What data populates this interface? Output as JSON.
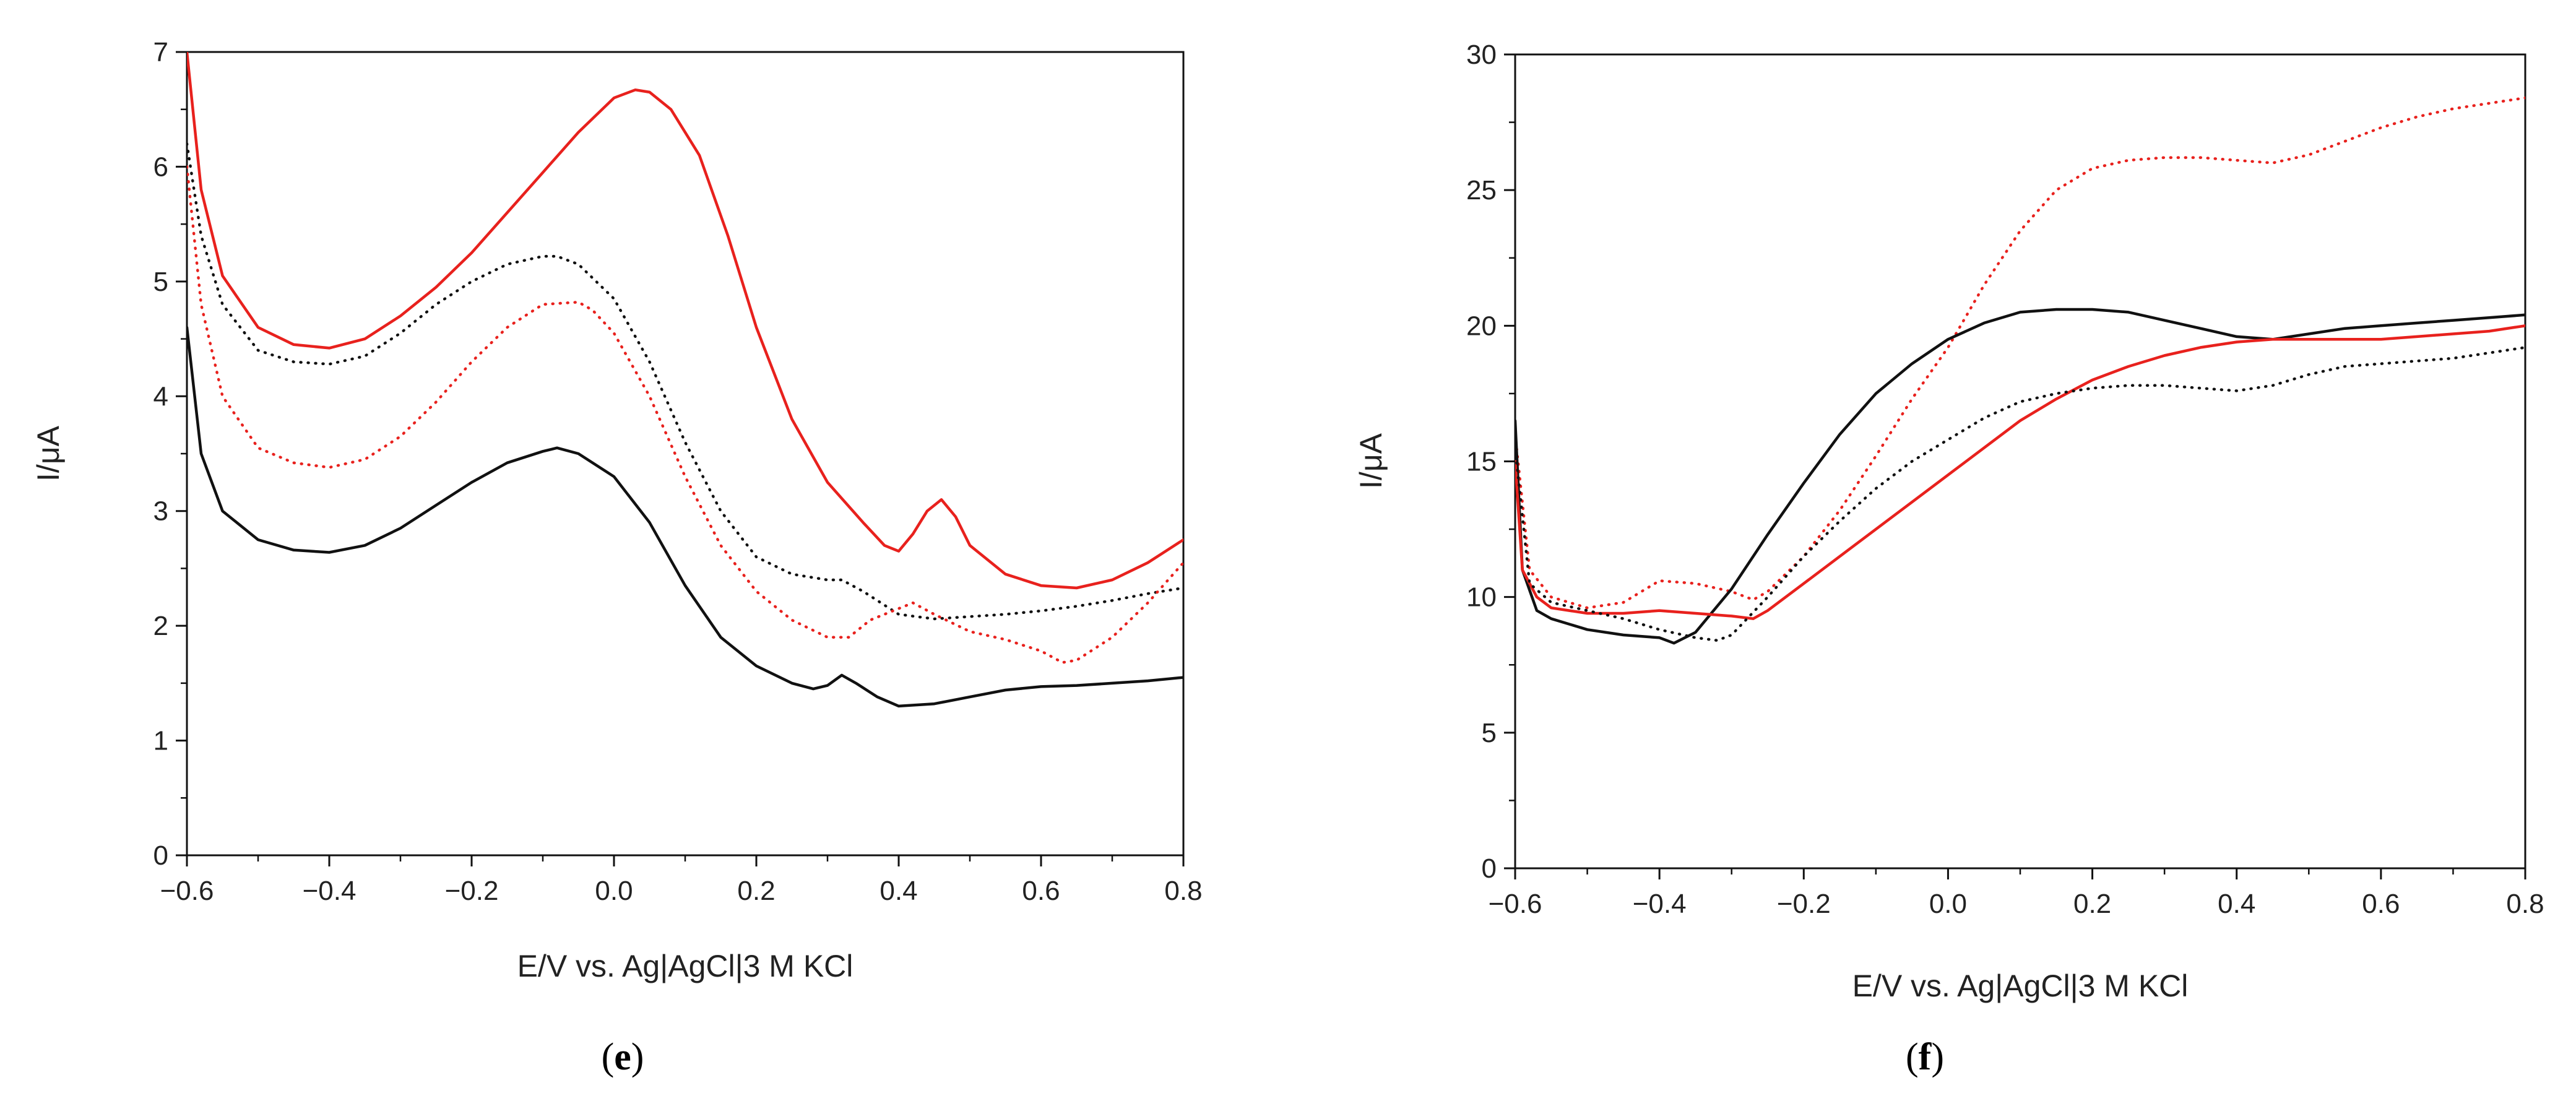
{
  "chart_data": [
    {
      "type": "line",
      "panel_label": "e",
      "xlabel": "E/V vs. Ag|AgCl|3 M KCl",
      "ylabel": "I/μA",
      "xlim": [
        -0.6,
        0.8
      ],
      "ylim": [
        0,
        7
      ],
      "xticks": [
        "−0.6",
        "−0.4",
        "−0.2",
        "0.0",
        "0.2",
        "0.4",
        "0.6",
        "0.8"
      ],
      "xtick_values": [
        -0.6,
        -0.4,
        -0.2,
        0.0,
        0.2,
        0.4,
        0.6,
        0.8
      ],
      "yticks": [
        "0",
        "1",
        "2",
        "3",
        "4",
        "5",
        "6",
        "7"
      ],
      "ytick_values": [
        0,
        1,
        2,
        3,
        4,
        5,
        6,
        7
      ],
      "series": [
        {
          "name": "red solid",
          "color": "#e8211d",
          "style": "solid",
          "x": [
            -0.6,
            -0.58,
            -0.55,
            -0.5,
            -0.45,
            -0.4,
            -0.35,
            -0.3,
            -0.25,
            -0.2,
            -0.15,
            -0.1,
            -0.05,
            0.0,
            0.03,
            0.05,
            0.08,
            0.12,
            0.16,
            0.2,
            0.25,
            0.3,
            0.35,
            0.38,
            0.4,
            0.42,
            0.44,
            0.46,
            0.48,
            0.5,
            0.55,
            0.6,
            0.65,
            0.7,
            0.75,
            0.8
          ],
          "y": [
            7.0,
            5.8,
            5.05,
            4.6,
            4.45,
            4.42,
            4.5,
            4.7,
            4.95,
            5.25,
            5.6,
            5.95,
            6.3,
            6.6,
            6.67,
            6.65,
            6.5,
            6.1,
            5.4,
            4.6,
            3.8,
            3.25,
            2.9,
            2.7,
            2.65,
            2.8,
            3.0,
            3.1,
            2.95,
            2.7,
            2.45,
            2.35,
            2.33,
            2.4,
            2.55,
            2.75
          ]
        },
        {
          "name": "black dotted",
          "color": "#111111",
          "style": "dotted",
          "x": [
            -0.6,
            -0.58,
            -0.55,
            -0.5,
            -0.45,
            -0.4,
            -0.35,
            -0.3,
            -0.25,
            -0.2,
            -0.15,
            -0.1,
            -0.08,
            -0.05,
            0.0,
            0.05,
            0.1,
            0.15,
            0.2,
            0.25,
            0.3,
            0.32,
            0.35,
            0.4,
            0.45,
            0.5,
            0.55,
            0.6,
            0.65,
            0.7,
            0.75,
            0.8
          ],
          "y": [
            6.2,
            5.4,
            4.8,
            4.4,
            4.3,
            4.28,
            4.35,
            4.55,
            4.8,
            5.0,
            5.15,
            5.22,
            5.22,
            5.15,
            4.85,
            4.3,
            3.6,
            3.0,
            2.6,
            2.45,
            2.4,
            2.4,
            2.3,
            2.1,
            2.06,
            2.08,
            2.1,
            2.13,
            2.17,
            2.22,
            2.28,
            2.33
          ]
        },
        {
          "name": "red dotted",
          "color": "#e8211d",
          "style": "dotted",
          "x": [
            -0.6,
            -0.58,
            -0.55,
            -0.5,
            -0.45,
            -0.4,
            -0.35,
            -0.3,
            -0.25,
            -0.2,
            -0.15,
            -0.1,
            -0.05,
            -0.03,
            0.0,
            0.05,
            0.1,
            0.15,
            0.2,
            0.25,
            0.3,
            0.33,
            0.36,
            0.4,
            0.42,
            0.45,
            0.5,
            0.55,
            0.6,
            0.63,
            0.65,
            0.7,
            0.75,
            0.8
          ],
          "y": [
            6.0,
            4.8,
            4.0,
            3.55,
            3.42,
            3.38,
            3.45,
            3.65,
            3.95,
            4.3,
            4.6,
            4.8,
            4.82,
            4.75,
            4.55,
            4.0,
            3.3,
            2.7,
            2.3,
            2.05,
            1.9,
            1.9,
            2.05,
            2.15,
            2.2,
            2.1,
            1.95,
            1.88,
            1.78,
            1.68,
            1.7,
            1.9,
            2.2,
            2.55
          ]
        },
        {
          "name": "black solid",
          "color": "#111111",
          "style": "solid",
          "x": [
            -0.6,
            -0.58,
            -0.55,
            -0.5,
            -0.45,
            -0.4,
            -0.35,
            -0.3,
            -0.25,
            -0.2,
            -0.15,
            -0.1,
            -0.08,
            -0.05,
            0.0,
            0.05,
            0.1,
            0.15,
            0.2,
            0.25,
            0.28,
            0.3,
            0.32,
            0.34,
            0.37,
            0.4,
            0.45,
            0.5,
            0.55,
            0.6,
            0.65,
            0.7,
            0.75,
            0.8
          ],
          "y": [
            4.6,
            3.5,
            3.0,
            2.75,
            2.66,
            2.64,
            2.7,
            2.85,
            3.05,
            3.25,
            3.42,
            3.52,
            3.55,
            3.5,
            3.3,
            2.9,
            2.35,
            1.9,
            1.65,
            1.5,
            1.45,
            1.48,
            1.57,
            1.5,
            1.38,
            1.3,
            1.32,
            1.38,
            1.44,
            1.47,
            1.48,
            1.5,
            1.52,
            1.55
          ]
        }
      ]
    },
    {
      "type": "line",
      "panel_label": "f",
      "xlabel": "E/V vs. Ag|AgCl|3 M KCl",
      "ylabel": "I/μA",
      "xlim": [
        -0.6,
        0.8
      ],
      "ylim": [
        0,
        30
      ],
      "xticks": [
        "−0.6",
        "−0.4",
        "−0.2",
        "0.0",
        "0.2",
        "0.4",
        "0.6",
        "0.8"
      ],
      "xtick_values": [
        -0.6,
        -0.4,
        -0.2,
        0.0,
        0.2,
        0.4,
        0.6,
        0.8
      ],
      "yticks": [
        "0",
        "5",
        "10",
        "15",
        "20",
        "25",
        "30"
      ],
      "ytick_values": [
        0,
        5,
        10,
        15,
        20,
        25,
        30
      ],
      "series": [
        {
          "name": "red dotted",
          "color": "#e8211d",
          "style": "dotted",
          "x": [
            -0.6,
            -0.58,
            -0.55,
            -0.5,
            -0.45,
            -0.4,
            -0.35,
            -0.3,
            -0.27,
            -0.25,
            -0.2,
            -0.15,
            -0.1,
            -0.05,
            0.0,
            0.05,
            0.1,
            0.15,
            0.2,
            0.25,
            0.3,
            0.35,
            0.4,
            0.45,
            0.5,
            0.55,
            0.6,
            0.65,
            0.7,
            0.75,
            0.8
          ],
          "y": [
            16.0,
            11.0,
            10.0,
            9.6,
            9.8,
            10.6,
            10.5,
            10.2,
            9.9,
            10.2,
            11.5,
            13.2,
            15.2,
            17.3,
            19.2,
            21.5,
            23.5,
            25.0,
            25.8,
            26.1,
            26.2,
            26.2,
            26.1,
            26.0,
            26.3,
            26.8,
            27.3,
            27.7,
            28.0,
            28.2,
            28.4
          ]
        },
        {
          "name": "black solid",
          "color": "#111111",
          "style": "solid",
          "x": [
            -0.6,
            -0.59,
            -0.57,
            -0.55,
            -0.5,
            -0.45,
            -0.4,
            -0.38,
            -0.35,
            -0.3,
            -0.25,
            -0.2,
            -0.15,
            -0.1,
            -0.05,
            0.0,
            0.05,
            0.1,
            0.15,
            0.2,
            0.25,
            0.3,
            0.35,
            0.4,
            0.45,
            0.5,
            0.55,
            0.6,
            0.65,
            0.7,
            0.75,
            0.8
          ],
          "y": [
            16.5,
            11.0,
            9.5,
            9.2,
            8.8,
            8.6,
            8.5,
            8.3,
            8.7,
            10.3,
            12.3,
            14.2,
            16.0,
            17.5,
            18.6,
            19.5,
            20.1,
            20.5,
            20.6,
            20.6,
            20.5,
            20.2,
            19.9,
            19.6,
            19.5,
            19.7,
            19.9,
            20.0,
            20.1,
            20.2,
            20.3,
            20.4
          ]
        },
        {
          "name": "red solid",
          "color": "#e8211d",
          "style": "solid",
          "x": [
            -0.6,
            -0.59,
            -0.57,
            -0.55,
            -0.5,
            -0.45,
            -0.4,
            -0.35,
            -0.3,
            -0.27,
            -0.25,
            -0.2,
            -0.15,
            -0.1,
            -0.05,
            0.0,
            0.05,
            0.1,
            0.15,
            0.2,
            0.25,
            0.3,
            0.35,
            0.4,
            0.45,
            0.5,
            0.55,
            0.6,
            0.65,
            0.7,
            0.75,
            0.8
          ],
          "y": [
            15.0,
            11.0,
            10.0,
            9.6,
            9.4,
            9.4,
            9.5,
            9.4,
            9.3,
            9.2,
            9.5,
            10.5,
            11.5,
            12.5,
            13.5,
            14.5,
            15.5,
            16.5,
            17.3,
            18.0,
            18.5,
            18.9,
            19.2,
            19.4,
            19.5,
            19.5,
            19.5,
            19.5,
            19.6,
            19.7,
            19.8,
            20.0
          ]
        },
        {
          "name": "black dotted",
          "color": "#111111",
          "style": "dotted",
          "x": [
            -0.6,
            -0.58,
            -0.55,
            -0.5,
            -0.45,
            -0.4,
            -0.35,
            -0.32,
            -0.3,
            -0.25,
            -0.2,
            -0.15,
            -0.1,
            -0.05,
            0.0,
            0.05,
            0.1,
            0.15,
            0.2,
            0.25,
            0.3,
            0.35,
            0.4,
            0.45,
            0.5,
            0.55,
            0.6,
            0.65,
            0.7,
            0.75,
            0.8
          ],
          "y": [
            15.5,
            10.5,
            9.8,
            9.5,
            9.2,
            8.8,
            8.5,
            8.4,
            8.6,
            10.0,
            11.5,
            12.8,
            14.0,
            15.0,
            15.8,
            16.6,
            17.2,
            17.5,
            17.7,
            17.8,
            17.8,
            17.7,
            17.6,
            17.8,
            18.2,
            18.5,
            18.6,
            18.7,
            18.8,
            19.0,
            19.2
          ]
        }
      ]
    }
  ]
}
